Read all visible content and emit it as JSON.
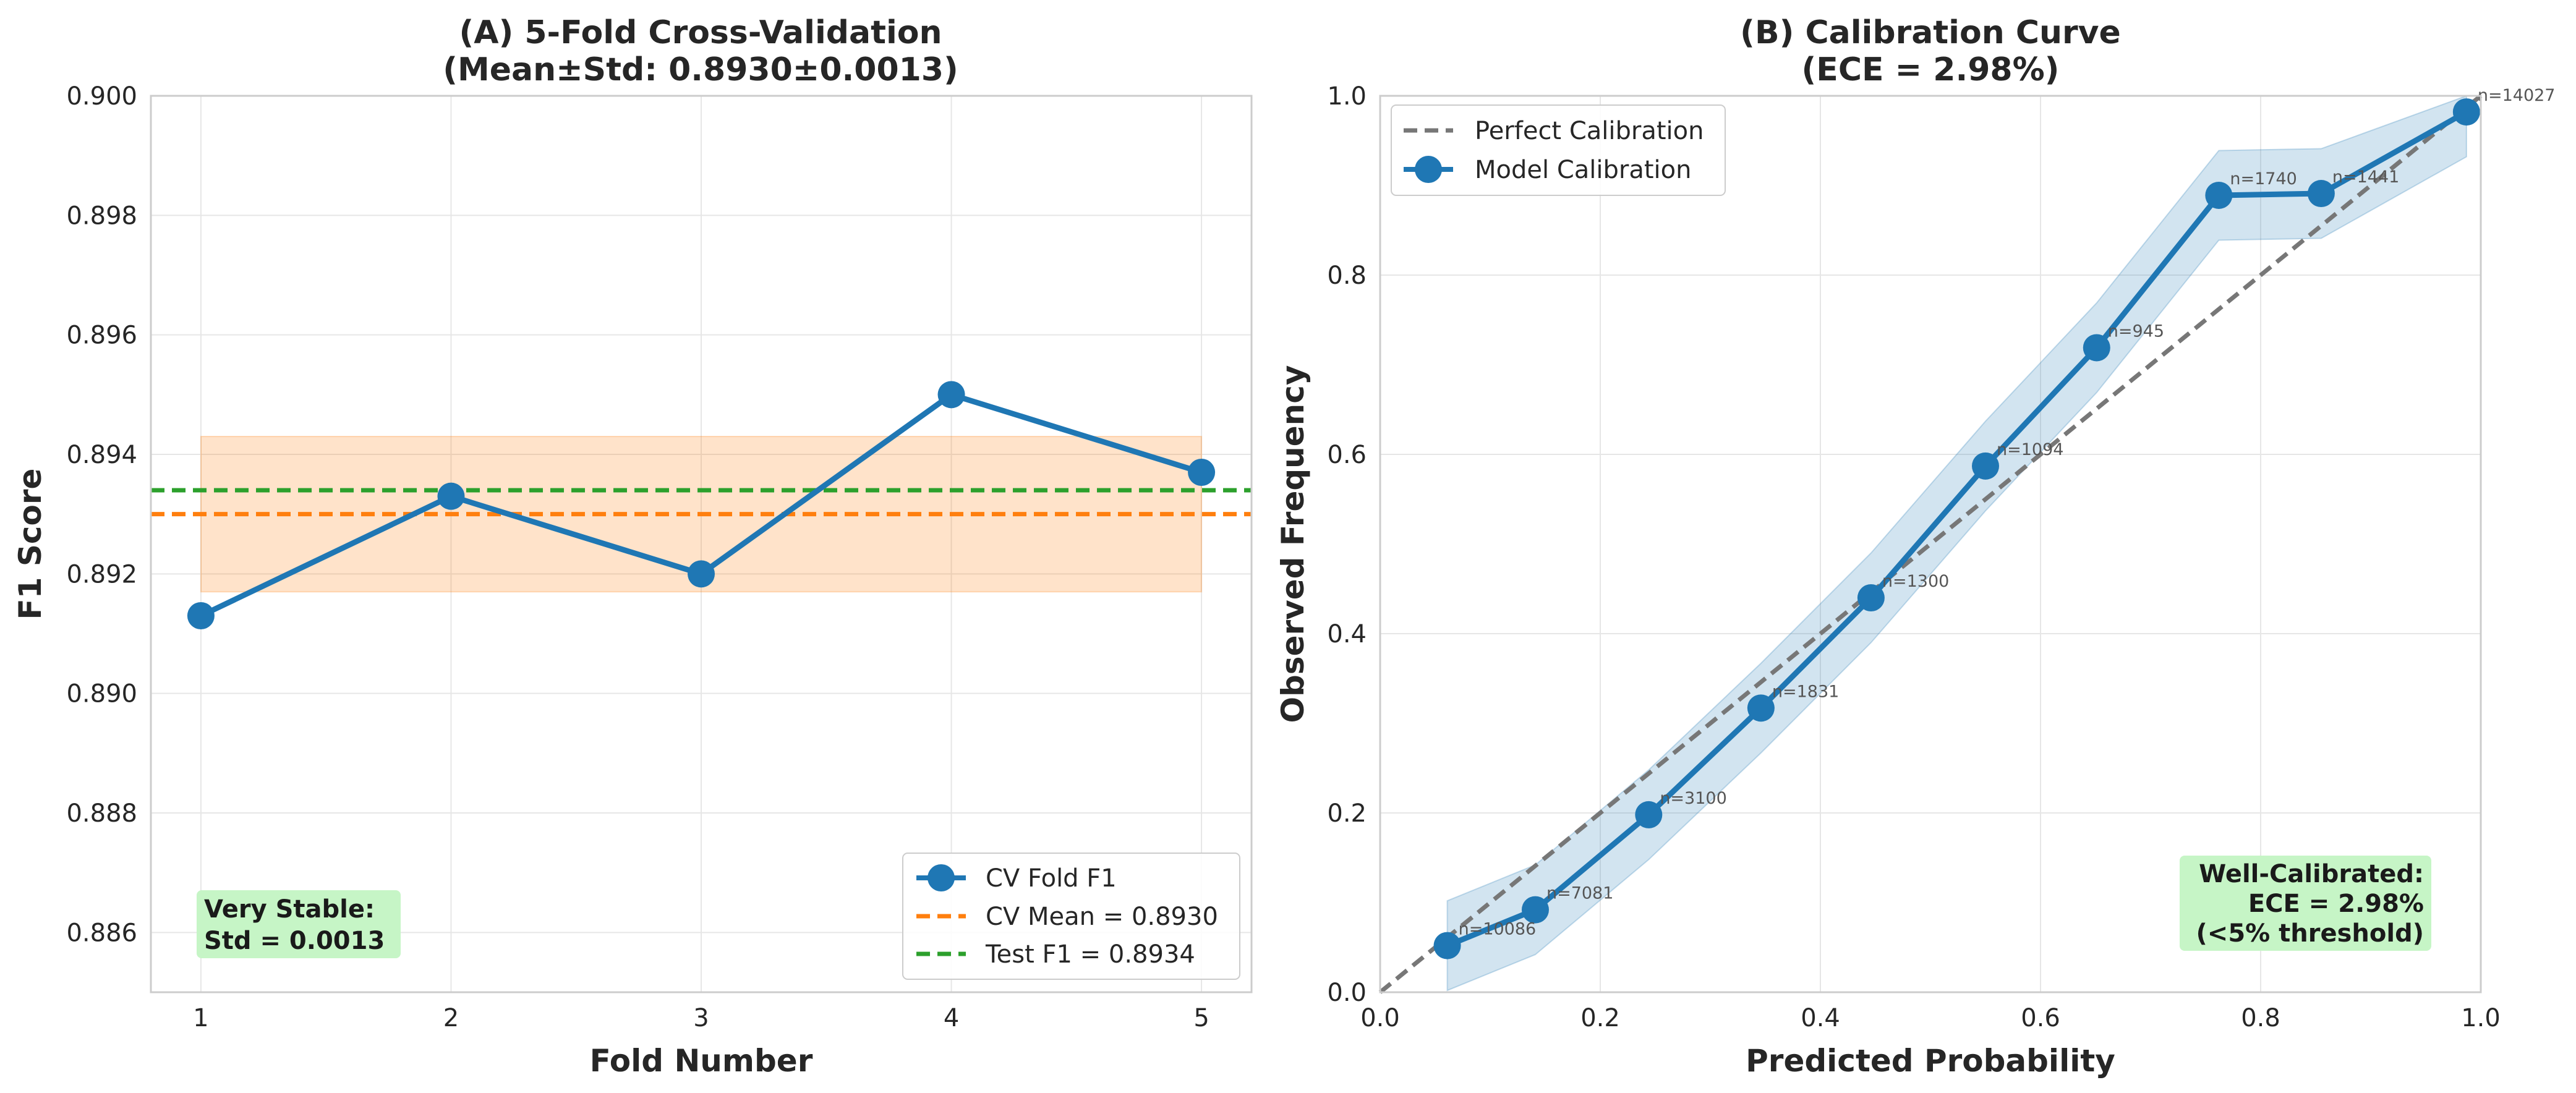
{
  "colors": {
    "blue": "#1f77b4",
    "orange": "#ff7f0e",
    "green": "#2ca02c",
    "gray": "#777777",
    "note_bg": "#c6f5c6",
    "band_blue": "#a8c9e6",
    "band_orange": "#fdd4b0"
  },
  "chart_data": [
    {
      "type": "line",
      "title_line1": "(A) 5-Fold Cross-Validation",
      "title_line2": "(Mean±Std: 0.8930±0.0013)",
      "xlabel": "Fold Number",
      "ylabel": "F1 Score",
      "xlim": [
        0.8,
        5.2
      ],
      "ylim": [
        0.885,
        0.9
      ],
      "x_ticks": [
        1,
        2,
        3,
        4,
        5
      ],
      "x_tick_labels": [
        "1",
        "2",
        "3",
        "4",
        "5"
      ],
      "y_ticks": [
        0.886,
        0.888,
        0.89,
        0.892,
        0.894,
        0.896,
        0.898,
        0.9
      ],
      "y_tick_labels": [
        "0.886",
        "0.888",
        "0.890",
        "0.892",
        "0.894",
        "0.896",
        "0.898",
        "0.900"
      ],
      "grid": true,
      "series": [
        {
          "name": "CV Fold F1",
          "x": [
            1,
            2,
            3,
            4,
            5
          ],
          "y": [
            0.8913,
            0.8933,
            0.892,
            0.895,
            0.8937
          ]
        }
      ],
      "cv_mean": 0.893,
      "test_f1": 0.8934,
      "std_band": [
        0.8917,
        0.8943
      ],
      "legend": [
        "CV Fold F1",
        "CV Mean = 0.8930",
        "Test F1 = 0.8934"
      ],
      "legend_position": "lower-right",
      "annotation": [
        "Very Stable:",
        "Std = 0.0013"
      ]
    },
    {
      "type": "line",
      "title_line1": "(B) Calibration Curve",
      "title_line2": "(ECE = 2.98%)",
      "xlabel": "Predicted Probability",
      "ylabel": "Observed Frequency",
      "xlim": [
        0,
        1
      ],
      "ylim": [
        0,
        1
      ],
      "x_ticks": [
        0,
        0.2,
        0.4,
        0.6,
        0.8,
        1.0
      ],
      "x_tick_labels": [
        "0.0",
        "0.2",
        "0.4",
        "0.6",
        "0.8",
        "1.0"
      ],
      "y_ticks": [
        0,
        0.2,
        0.4,
        0.6,
        0.8,
        1.0
      ],
      "y_tick_labels": [
        "0.0",
        "0.2",
        "0.4",
        "0.6",
        "0.8",
        "1.0"
      ],
      "grid": true,
      "series": [
        {
          "name": "Perfect Calibration",
          "x": [
            0,
            1
          ],
          "y": [
            0,
            1
          ]
        },
        {
          "name": "Model Calibration",
          "x": [
            0.061,
            0.141,
            0.244,
            0.346,
            0.446,
            0.55,
            0.651,
            0.762,
            0.855,
            0.987
          ],
          "y": [
            0.052,
            0.092,
            0.198,
            0.317,
            0.44,
            0.587,
            0.719,
            0.889,
            0.891,
            0.982
          ]
        }
      ],
      "band_lower": [
        0.002,
        0.042,
        0.148,
        0.267,
        0.39,
        0.537,
        0.669,
        0.839,
        0.841,
        0.932
      ],
      "band_upper": [
        0.102,
        0.142,
        0.248,
        0.367,
        0.49,
        0.637,
        0.769,
        0.939,
        0.941,
        1.0
      ],
      "point_labels": [
        "n=10086",
        "n=7081",
        "n=3100",
        "n=1831",
        "n=1300",
        "n=1094",
        "n=945",
        "n=1740",
        "n=1441",
        "n=14027"
      ],
      "legend": [
        "Perfect Calibration",
        "Model Calibration"
      ],
      "legend_position": "upper-left",
      "annotation": [
        "Well-Calibrated:",
        "ECE = 2.98%",
        "(<5% threshold)"
      ]
    }
  ]
}
